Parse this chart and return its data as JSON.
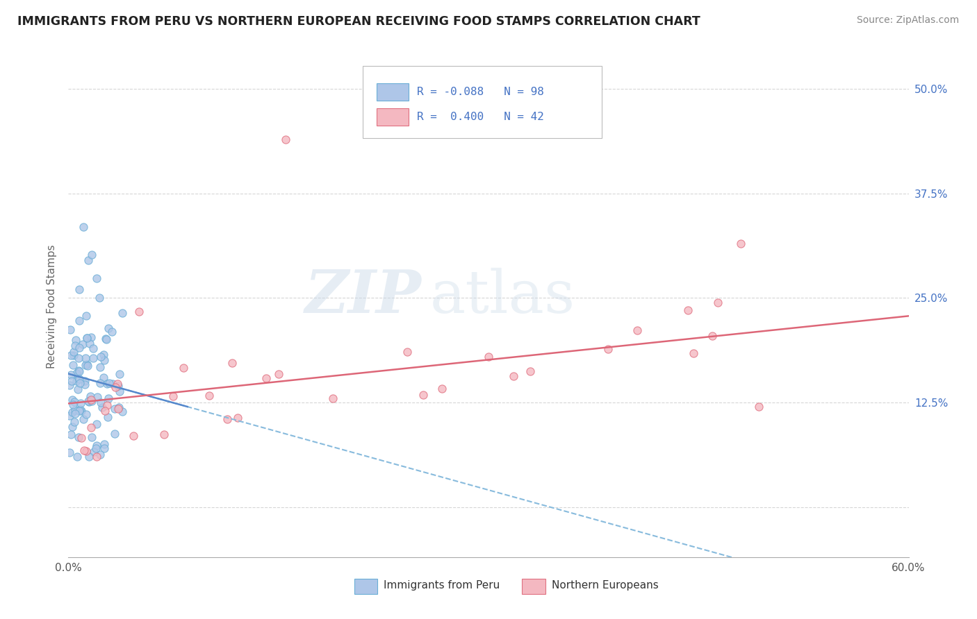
{
  "title": "IMMIGRANTS FROM PERU VS NORTHERN EUROPEAN RECEIVING FOOD STAMPS CORRELATION CHART",
  "source": "Source: ZipAtlas.com",
  "ylabel": "Receiving Food Stamps",
  "xlim": [
    0.0,
    0.6
  ],
  "ylim": [
    -0.06,
    0.54
  ],
  "yticks": [
    0.0,
    0.125,
    0.25,
    0.375,
    0.5
  ],
  "ytick_labels_right": [
    "",
    "12.5%",
    "25.0%",
    "37.5%",
    "50.0%"
  ],
  "xticks": [
    0.0,
    0.1,
    0.2,
    0.3,
    0.4,
    0.5,
    0.6
  ],
  "xtick_labels": [
    "0.0%",
    "",
    "",
    "",
    "",
    "",
    "60.0%"
  ],
  "peru_color": "#aec6e8",
  "peru_edge": "#6aaed6",
  "northern_color": "#f4b8c1",
  "northern_edge": "#e07080",
  "peru_R": -0.088,
  "peru_N": 98,
  "northern_R": 0.4,
  "northern_N": 42,
  "trend_peru_solid_color": "#5588cc",
  "trend_peru_dash_color": "#88bbdd",
  "trend_northern_color": "#dd6677",
  "watermark_zip": "ZIP",
  "watermark_atlas": "atlas",
  "background_color": "#ffffff",
  "grid_color": "#cccccc",
  "title_color": "#222222",
  "legend_color": "#4472c4",
  "right_axis_color": "#4472c4",
  "figsize": [
    14.06,
    8.92
  ]
}
